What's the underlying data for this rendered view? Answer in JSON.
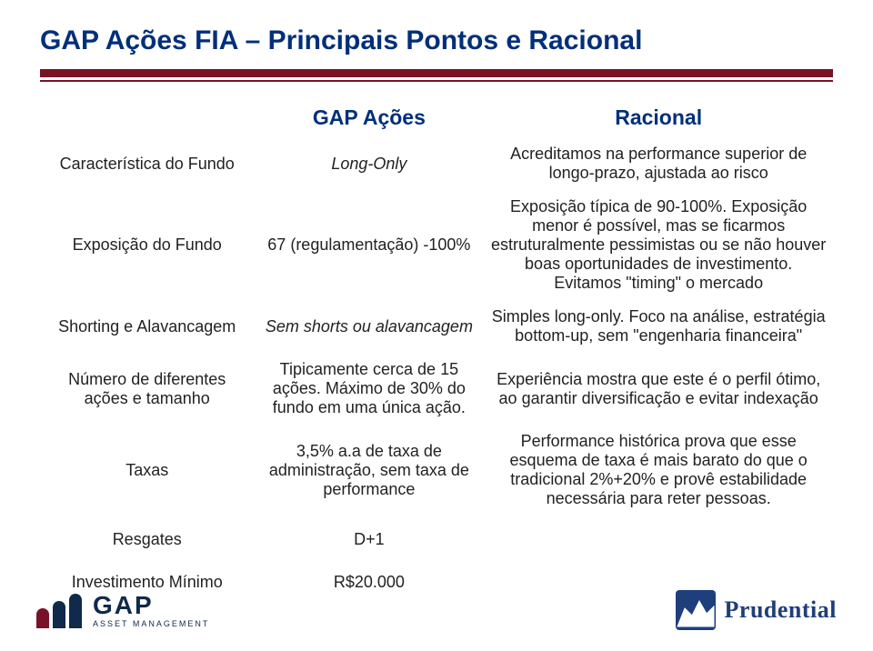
{
  "colors": {
    "title": "#002f7a",
    "rule": "#7a1227",
    "header_text": "#002f7a",
    "body_text": "#222222",
    "gap_navy": "#0f2a4a",
    "gap_red": "#7a1227",
    "pru_blue": "#1e3f7c",
    "pru_white": "#ffffff"
  },
  "sizes": {
    "title_fontsize": 30,
    "header_fontsize": 23,
    "cell_fontsize": 18
  },
  "title": "GAP Ações FIA – Principais Pontos e Racional",
  "headers": {
    "col1": "GAP Ações",
    "col2": "Racional"
  },
  "rows": [
    {
      "label": "Característica do Fundo",
      "col1": "Long-Only",
      "col1_italic": true,
      "col2": "Acreditamos na performance superior de longo-prazo, ajustada ao risco"
    },
    {
      "label": "Exposição do Fundo",
      "col1": "67 (regulamentação) -100%",
      "col2": "Exposição típica de 90-100%. Exposição menor é possível, mas se ficarmos estruturalmente pessimistas ou se não houver boas oportunidades de investimento. Evitamos \"timing\" o mercado"
    },
    {
      "label": "Shorting e Alavancagem",
      "col1": "Sem shorts ou alavancagem",
      "col1_italic": true,
      "col2": "Simples long-only. Foco na análise, estratégia bottom-up, sem \"engenharia financeira\""
    },
    {
      "label": "Número de diferentes ações e tamanho",
      "col1": "Tipicamente cerca de 15 ações. Máximo de 30% do fundo em uma única ação.",
      "col2": "Experiência mostra que este é o perfil ótimo, ao garantir diversificação e evitar indexação"
    },
    {
      "label": "Taxas",
      "col1": "3,5% a.a de taxa de administração, sem taxa de performance",
      "col2": "Performance histórica prova que esse esquema de taxa é mais barato do que o tradicional 2%+20% e provê estabilidade necessária para reter pessoas."
    },
    {
      "label": "Resgates",
      "col1": "D+1",
      "col2": ""
    },
    {
      "label": "Investimento Mínimo",
      "col1": "R$20.000",
      "col2": ""
    }
  ],
  "logos": {
    "gap_main": "GAP",
    "gap_sub": "ASSET MANAGEMENT",
    "prudential": "Prudential"
  }
}
